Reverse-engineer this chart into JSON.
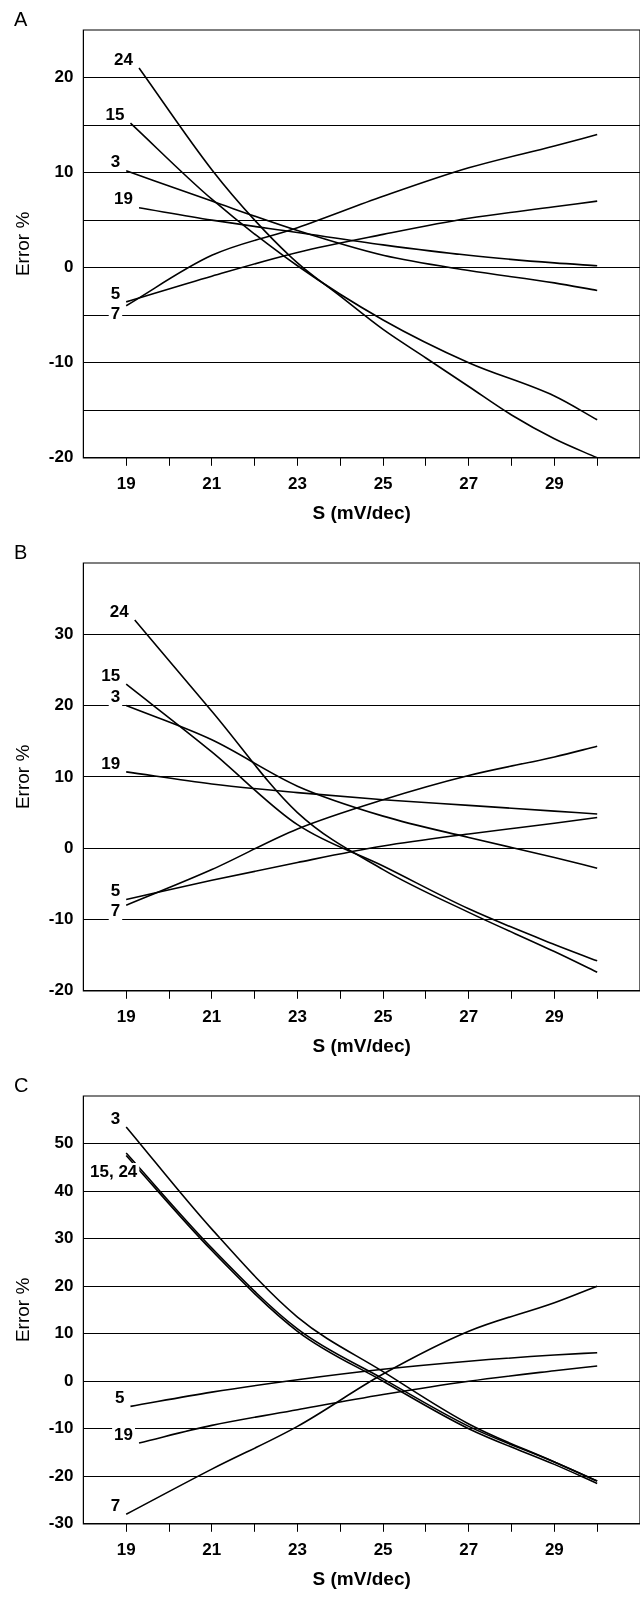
{
  "chart_data": [
    {
      "type": "line",
      "title": "A",
      "xlabel": "S (mV/dec)",
      "ylabel": "Error %",
      "xlim": [
        18,
        31
      ],
      "xticks": [
        19,
        {
          "value": 20,
          "label": null
        },
        21,
        {
          "value": 22,
          "label": null
        },
        23,
        {
          "value": 24,
          "label": null
        },
        25,
        {
          "value": 26,
          "label": null
        },
        27,
        {
          "value": 28,
          "label": null
        },
        29,
        {
          "value": 30,
          "label": null
        }
      ],
      "ylim": [
        -20,
        25
      ],
      "yticks": [
        -20,
        {
          "value": -15,
          "label": null
        },
        -10,
        {
          "value": -5,
          "label": null
        },
        0,
        {
          "value": 5,
          "label": null
        },
        10,
        {
          "value": 15,
          "label": null
        },
        20
      ],
      "grid": "y",
      "marker": "none",
      "line_style": "solid",
      "series": [
        {
          "name": "24",
          "color": "#000000",
          "x": [
            19.3,
            21,
            22,
            23,
            24,
            25,
            26,
            27,
            28,
            29,
            30
          ],
          "values": [
            21,
            10.3,
            5,
            0.5,
            -3,
            -6.5,
            -9.5,
            -12.5,
            -15.5,
            -18,
            -20
          ]
        },
        {
          "name": "15",
          "color": "#000000",
          "x": [
            19.1,
            21,
            23,
            25,
            27,
            29,
            30
          ],
          "values": [
            15.2,
            7.2,
            0.2,
            -5.5,
            -10,
            -13.5,
            -16
          ]
        },
        {
          "name": "3",
          "color": "#000000",
          "x": [
            19,
            21,
            23,
            25,
            27,
            29,
            30
          ],
          "values": [
            10.2,
            7,
            3.9,
            1.3,
            -0.3,
            -1.6,
            -2.4
          ]
        },
        {
          "name": "19",
          "color": "#000000",
          "x": [
            19.3,
            21,
            23,
            25,
            27,
            29,
            30
          ],
          "values": [
            6.3,
            5,
            3.7,
            2.4,
            1.3,
            0.5,
            0.2
          ]
        },
        {
          "name": "5",
          "color": "#000000",
          "x": [
            19,
            21,
            23,
            25,
            27,
            29,
            30
          ],
          "values": [
            -3.6,
            -0.9,
            1.6,
            3.5,
            5.2,
            6.4,
            7
          ]
        },
        {
          "name": "7",
          "color": "#000000",
          "x": [
            19,
            21,
            23,
            25,
            27,
            29,
            30
          ],
          "values": [
            -4,
            1.3,
            4.2,
            7.5,
            10.5,
            12.8,
            14
          ]
        }
      ]
    },
    {
      "type": "line",
      "title": "B",
      "xlabel": "S (mV/dec)",
      "ylabel": "Error %",
      "xlim": [
        18,
        31
      ],
      "xticks": [
        19,
        {
          "value": 20,
          "label": null
        },
        21,
        {
          "value": 22,
          "label": null
        },
        23,
        {
          "value": 24,
          "label": null
        },
        25,
        {
          "value": 26,
          "label": null
        },
        27,
        {
          "value": 28,
          "label": null
        },
        29,
        {
          "value": 30,
          "label": null
        }
      ],
      "ylim": [
        -20,
        40
      ],
      "yticks": [
        -20,
        -10,
        0,
        10,
        20,
        30
      ],
      "grid": "y",
      "marker": "none",
      "line_style": "solid",
      "series": [
        {
          "name": "24",
          "color": "#000000",
          "x": [
            19.2,
            21,
            23,
            25,
            27,
            29,
            30
          ],
          "values": [
            32,
            19.2,
            5,
            -3,
            -9,
            -14.5,
            -17.4
          ]
        },
        {
          "name": "15",
          "color": "#000000",
          "x": [
            19,
            21,
            23,
            25,
            27,
            29,
            30
          ],
          "values": [
            23,
            13.5,
            3.3,
            -2.5,
            -8.5,
            -13.5,
            -15.8
          ]
        },
        {
          "name": "3",
          "color": "#000000",
          "x": [
            19,
            21,
            23,
            25,
            27,
            29,
            30
          ],
          "values": [
            20,
            15.2,
            8.7,
            4.5,
            1.5,
            -1.3,
            -2.8
          ]
        },
        {
          "name": "19",
          "color": "#000000",
          "x": [
            19,
            21,
            23,
            25,
            27,
            29,
            30
          ],
          "values": [
            10.7,
            9,
            7.8,
            6.8,
            6,
            5.2,
            4.8
          ]
        },
        {
          "name": "5",
          "color": "#000000",
          "x": [
            19,
            21,
            23,
            25,
            27,
            29,
            30
          ],
          "values": [
            -7.2,
            -4.5,
            -2,
            0.3,
            2,
            3.5,
            4.3
          ]
        },
        {
          "name": "7",
          "color": "#000000",
          "x": [
            19,
            21,
            23,
            25,
            27,
            29,
            30
          ],
          "values": [
            -8,
            -3,
            2.7,
            6.8,
            10.2,
            12.8,
            14.3
          ]
        }
      ]
    },
    {
      "type": "line",
      "title": "C",
      "xlabel": "S (mV/dec)",
      "ylabel": "Error %",
      "xlim": [
        18,
        31
      ],
      "xticks": [
        19,
        {
          "value": 20,
          "label": null
        },
        21,
        {
          "value": 22,
          "label": null
        },
        23,
        {
          "value": 24,
          "label": null
        },
        25,
        {
          "value": 26,
          "label": null
        },
        27,
        {
          "value": 28,
          "label": null
        },
        29,
        {
          "value": 30,
          "label": null
        }
      ],
      "ylim": [
        -30,
        60
      ],
      "yticks": [
        -30,
        -20,
        -10,
        0,
        10,
        20,
        30,
        40,
        50
      ],
      "grid": "y",
      "marker": "none",
      "line_style": "solid",
      "series": [
        {
          "name": "3",
          "color": "#000000",
          "x": [
            19,
            21,
            23,
            25,
            27,
            29,
            30
          ],
          "values": [
            53.5,
            32,
            13.5,
            2,
            -9,
            -17,
            -21
          ]
        },
        {
          "name": "15, 24",
          "color": "#000000",
          "x": [
            19,
            21,
            23,
            25,
            27,
            29,
            30
          ],
          "values": [
            48,
            28,
            11,
            0.5,
            -9.5,
            -17,
            -21
          ]
        },
        {
          "color": "#000000",
          "x": [
            19,
            21,
            23,
            25,
            27,
            29,
            30
          ],
          "values": [
            47.5,
            27.5,
            10.5,
            0,
            -10,
            -17.5,
            -21.5
          ]
        },
        {
          "name": "5",
          "color": "#000000",
          "x": [
            19.1,
            21,
            23,
            25,
            27,
            29,
            30
          ],
          "values": [
            -5.3,
            -2.3,
            0.3,
            2.5,
            4.2,
            5.5,
            6
          ]
        },
        {
          "name": "19",
          "color": "#000000",
          "x": [
            19.3,
            21,
            23,
            25,
            27,
            29,
            30
          ],
          "values": [
            -13,
            -9.3,
            -6,
            -2.8,
            0,
            2.2,
            3.2
          ]
        },
        {
          "name": "7",
          "color": "#000000",
          "x": [
            19,
            21,
            23,
            25,
            27,
            29,
            30
          ],
          "values": [
            -28,
            -18.5,
            -9.5,
            1.5,
            10.5,
            16.5,
            20
          ]
        }
      ]
    }
  ]
}
